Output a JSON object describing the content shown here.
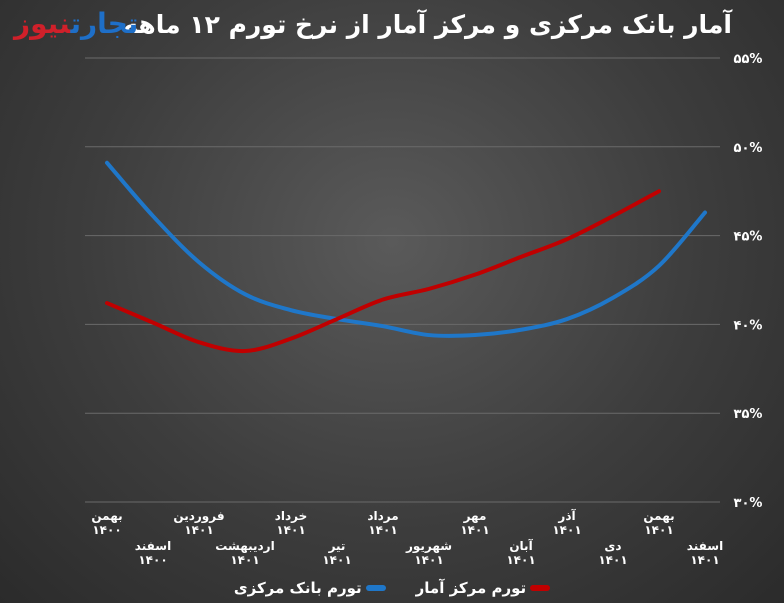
{
  "logo": {
    "part1": "تجارت",
    "part2": "نیوز"
  },
  "chart_data": {
    "type": "line",
    "title": "آمار بانک مرکزی و مرکز آمار از نرخ تورم ۱۲ ماهه",
    "categories": [
      "بهمن ۱۴۰۰",
      "اسفند ۱۴۰۰",
      "فروردین ۱۴۰۱",
      "اردیبهشت ۱۴۰۱",
      "خرداد ۱۴۰۱",
      "تیر ۱۴۰۱",
      "مرداد ۱۴۰۱",
      "شهریور ۱۴۰۱",
      "مهر ۱۴۰۱",
      "آبان ۱۴۰۱",
      "آذر ۱۴۰۱",
      "دی ۱۴۰۱",
      "بهمن ۱۴۰۱",
      "اسفند ۱۴۰۱"
    ],
    "yticks": [
      30,
      35,
      40,
      45,
      50,
      55
    ],
    "ytick_labels": [
      "۳۰%",
      "۳۵%",
      "۴۰%",
      "۴۵%",
      "۵۰%",
      "۵۵%"
    ],
    "ylim": [
      30,
      55
    ],
    "grid": true,
    "legend_position": "bottom",
    "series": [
      {
        "name": "تورم بانک مرکزی",
        "color": "#1f77c9",
        "values": [
          49.1,
          46.1,
          43.5,
          41.7,
          40.8,
          40.3,
          39.9,
          39.4,
          39.4,
          39.7,
          40.3,
          41.5,
          43.3,
          46.3
        ]
      },
      {
        "name": "تورم مرکز آمار",
        "color": "#c00000",
        "values": [
          41.2,
          40.1,
          39.0,
          38.5,
          39.2,
          40.3,
          41.4,
          42.0,
          42.8,
          43.8,
          44.8,
          46.1,
          47.5,
          null
        ]
      }
    ]
  }
}
